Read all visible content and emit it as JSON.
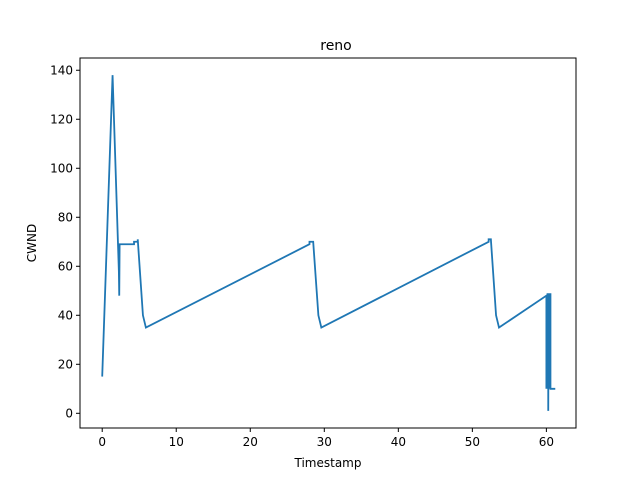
{
  "chart_data": {
    "type": "line",
    "title": "reno",
    "xlabel": "Timestamp",
    "ylabel": "CWND",
    "xlim": [
      -3.0,
      64.0
    ],
    "ylim": [
      -6,
      145
    ],
    "xticks": [
      0,
      10,
      20,
      30,
      40,
      50,
      60
    ],
    "yticks": [
      0,
      20,
      40,
      60,
      80,
      100,
      120,
      140
    ],
    "grid": false,
    "legend": "none",
    "series": [
      {
        "color": "#1f77b4",
        "x": [
          0.0,
          1.4,
          2.25,
          2.3,
          2.35,
          2.4,
          4.3,
          4.3,
          4.8,
          4.8,
          5.5,
          5.9,
          28.0,
          28.0,
          28.5,
          29.2,
          29.6,
          52.2,
          52.2,
          52.5,
          53.2,
          53.6,
          60.0,
          60.0,
          60.05,
          60.05,
          60.1,
          60.1,
          60.15,
          60.15,
          60.2,
          60.2,
          60.25,
          60.25,
          60.3,
          60.3,
          60.35,
          60.35,
          60.4,
          60.4,
          60.45,
          60.45,
          60.5,
          60.5,
          60.55,
          60.55,
          61.2
        ],
        "y": [
          15,
          138,
          58,
          48,
          69,
          69,
          69,
          70,
          70,
          71,
          40,
          35,
          69,
          70,
          70,
          40,
          35,
          70,
          71,
          71,
          40,
          35,
          48,
          10,
          48,
          10,
          48,
          10,
          49,
          10,
          49,
          10,
          48,
          1,
          49,
          10,
          49,
          10,
          48,
          10,
          49,
          10,
          48,
          10,
          49,
          10,
          10
        ]
      }
    ]
  }
}
